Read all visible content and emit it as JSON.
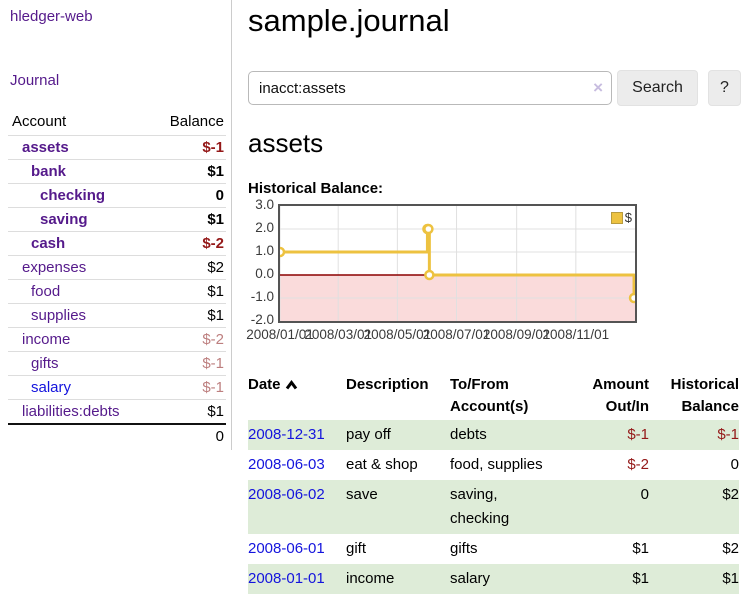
{
  "app": {
    "title": "hledger-web"
  },
  "sidebar": {
    "journal_link": "Journal",
    "accounts_header": {
      "account": "Account",
      "balance": "Balance"
    },
    "accounts": [
      {
        "name": "assets",
        "level": 1,
        "bold": true,
        "balance": "$-1",
        "balance_style": "neg-strong",
        "link": "purple"
      },
      {
        "name": "bank",
        "level": 2,
        "bold": true,
        "balance": "$1",
        "balance_style": "",
        "link": "purple"
      },
      {
        "name": "checking",
        "level": 3,
        "bold": true,
        "balance": "0",
        "balance_style": "",
        "link": "purple"
      },
      {
        "name": "saving",
        "level": 3,
        "bold": true,
        "balance": "$1",
        "balance_style": "",
        "link": "purple"
      },
      {
        "name": "cash",
        "level": 2,
        "bold": true,
        "balance": "$-2",
        "balance_style": "neg-strong",
        "link": "purple"
      },
      {
        "name": "expenses",
        "level": 1,
        "bold": false,
        "balance": "$2",
        "balance_style": "",
        "link": "purple"
      },
      {
        "name": "food",
        "level": 2,
        "bold": false,
        "balance": "$1",
        "balance_style": "",
        "link": "purple"
      },
      {
        "name": "supplies",
        "level": 2,
        "bold": false,
        "balance": "$1",
        "balance_style": "",
        "link": "purple"
      },
      {
        "name": "income",
        "level": 1,
        "bold": false,
        "balance": "$-2",
        "balance_style": "neg-soft",
        "link": "purple"
      },
      {
        "name": "gifts",
        "level": 2,
        "bold": false,
        "balance": "$-1",
        "balance_style": "neg-soft",
        "link": "purple"
      },
      {
        "name": "salary",
        "level": 2,
        "bold": false,
        "balance": "$-1",
        "balance_style": "neg-soft",
        "link": "blue"
      },
      {
        "name": "liabilities:debts",
        "level": 1,
        "bold": false,
        "balance": "$1",
        "balance_style": "",
        "link": "purple"
      }
    ],
    "total": "0"
  },
  "header": {
    "title": "sample.journal"
  },
  "search": {
    "value": "inacct:assets",
    "clear_icon": "×",
    "button_label": "Search",
    "help_label": "?"
  },
  "account_page": {
    "title": "assets",
    "chart_label": "Historical Balance:"
  },
  "chart_data": {
    "type": "line",
    "style": "step",
    "title": "Historical Balance:",
    "series": [
      {
        "name": "$",
        "color": "#EDC240",
        "points": [
          [
            "2008-01-01",
            1
          ],
          [
            "2008-06-01",
            2
          ],
          [
            "2008-06-02",
            2
          ],
          [
            "2008-06-03",
            0
          ],
          [
            "2008-12-31",
            -1
          ]
        ]
      }
    ],
    "x_range": [
      "2008-01-01",
      "2009-01-01"
    ],
    "x_ticks": [
      "2008/01/01",
      "2008/03/01",
      "2008/05/01",
      "2008/07/01",
      "2008/09/01",
      "2008/11/01"
    ],
    "y_ticks": [
      3.0,
      2.0,
      1.0,
      0.0,
      -1.0,
      -2.0
    ],
    "ylim": [
      -2,
      3
    ],
    "grid": true,
    "grid_color": "#e0e0e0",
    "negative_fill": "#fadbdb",
    "zero_line_color": "#8b0000",
    "legend_position": "top-right"
  },
  "register": {
    "columns": [
      "Date",
      "Description",
      "To/From Account(s)",
      "Amount Out/In",
      "Historical Balance"
    ],
    "sort_icon": "chevron-up",
    "rows": [
      {
        "date": "2008-12-31",
        "description": "pay off",
        "accounts": "debts",
        "amount": "$-1",
        "amount_neg": true,
        "balance": "$-1",
        "balance_neg": true
      },
      {
        "date": "2008-06-03",
        "description": "eat & shop",
        "accounts": "food, supplies",
        "amount": "$-2",
        "amount_neg": true,
        "balance": "0",
        "balance_neg": false
      },
      {
        "date": "2008-06-02",
        "description": "save",
        "accounts": "saving, checking",
        "amount": "0",
        "amount_neg": false,
        "balance": "$2",
        "balance_neg": false
      },
      {
        "date": "2008-06-01",
        "description": "gift",
        "accounts": "gifts",
        "amount": "$1",
        "amount_neg": false,
        "balance": "$2",
        "balance_neg": false
      },
      {
        "date": "2008-01-01",
        "description": "income",
        "accounts": "salary",
        "amount": "$1",
        "amount_neg": false,
        "balance": "$1",
        "balance_neg": false
      }
    ]
  }
}
